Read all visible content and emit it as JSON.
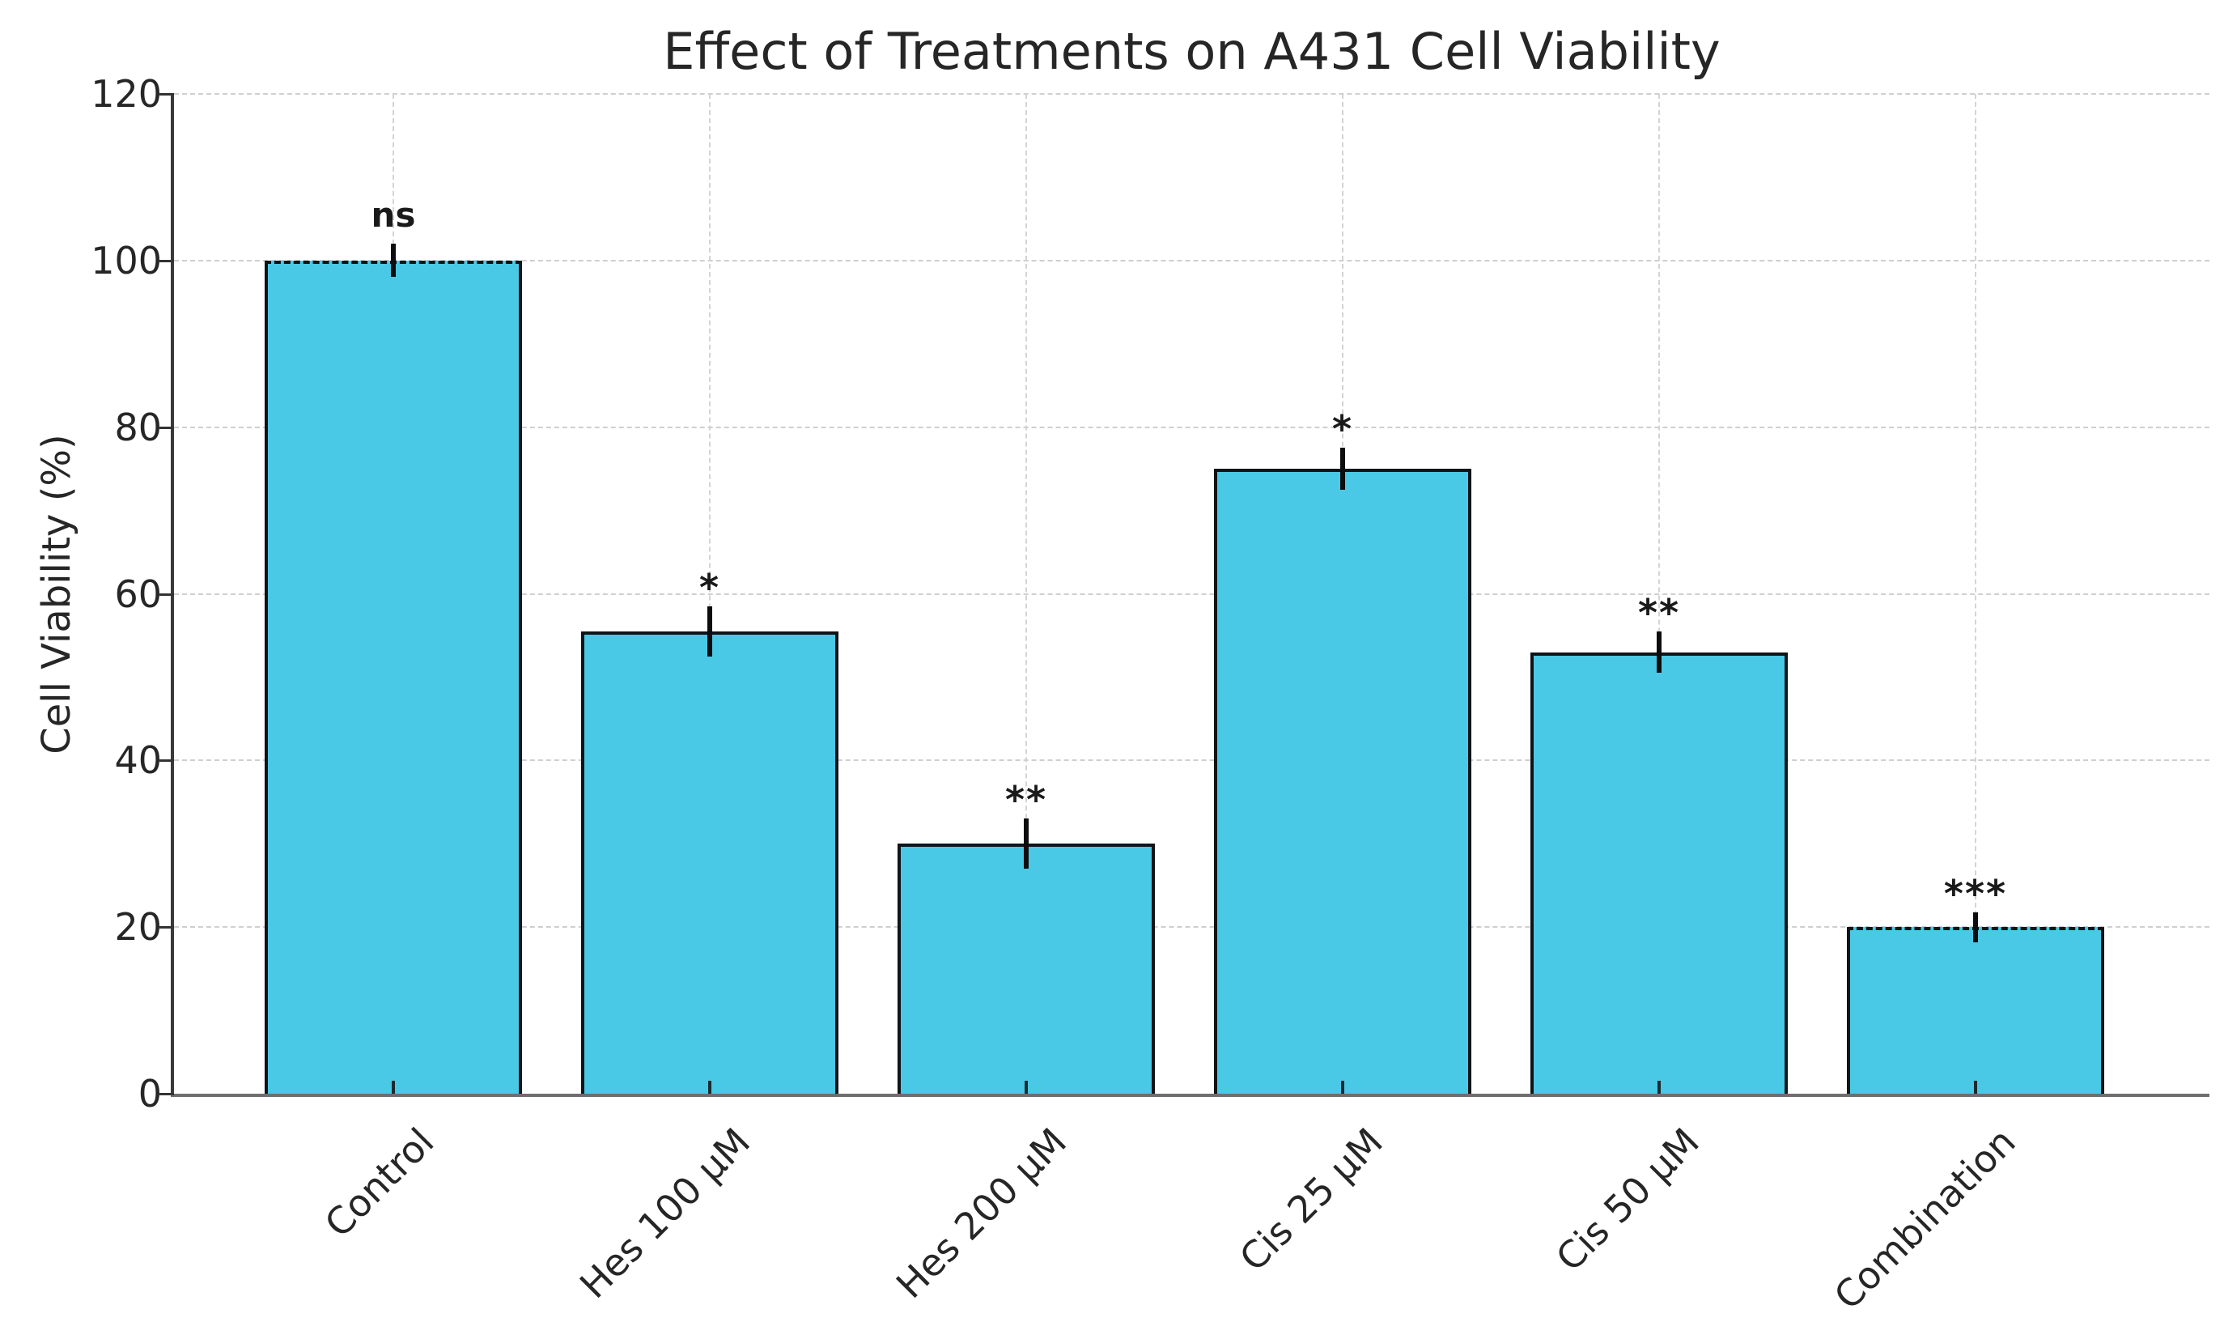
{
  "chart_data": {
    "type": "bar",
    "title": "Effect of Treatments on A431 Cell Viability",
    "xlabel": "",
    "ylabel": "Cell Viability (%)",
    "categories": [
      "Control",
      "Hes  100 µM",
      "Hes  200 µM",
      "Cis  25 µM",
      "Cis  50 µM",
      "Combination"
    ],
    "values": [
      100,
      55.5,
      30,
      75,
      53,
      20
    ],
    "errors": [
      2,
      3,
      3,
      2.5,
      2.5,
      1.8
    ],
    "significance": [
      "ns",
      "*",
      "**",
      "*",
      "**",
      "***"
    ],
    "yticks": [
      0,
      20,
      40,
      60,
      80,
      100,
      120
    ],
    "ylim": [
      0,
      120
    ],
    "grid": true,
    "legend": "none",
    "bar_color": "#4ac9e6",
    "bar_edge_color": "#111417",
    "error_bar_color": "#0d0d0d",
    "grid_color": "#cfcfcf",
    "text_color": "#262626",
    "x_tick_rotation_deg": 45
  }
}
